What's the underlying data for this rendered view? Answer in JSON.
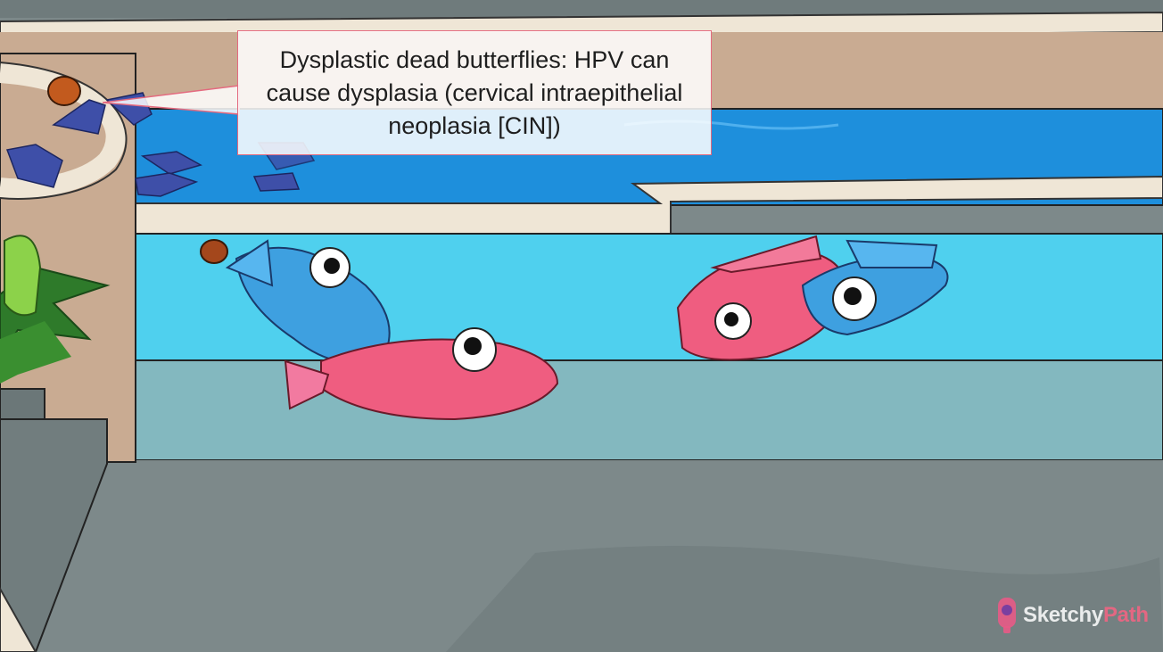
{
  "callout": {
    "text": "Dysplastic dead butterflies: HPV can cause dysplasia (cervical intraepithelial neoplasia [CIN])"
  },
  "watermark": {
    "brand_part1": "Sketchy",
    "brand_part2": "Path"
  },
  "colors": {
    "pool_water": "#4fd0ee",
    "pool_back_water": "#1e8fdc",
    "deck": "#7f8b8c",
    "pink_fish": "#ef5d80",
    "blue_fish": "#3ea0e0",
    "butterfly": "#3e4fa8",
    "callout_border": "#e46a7f"
  },
  "icons": [
    "sketchy-logo-icon"
  ]
}
